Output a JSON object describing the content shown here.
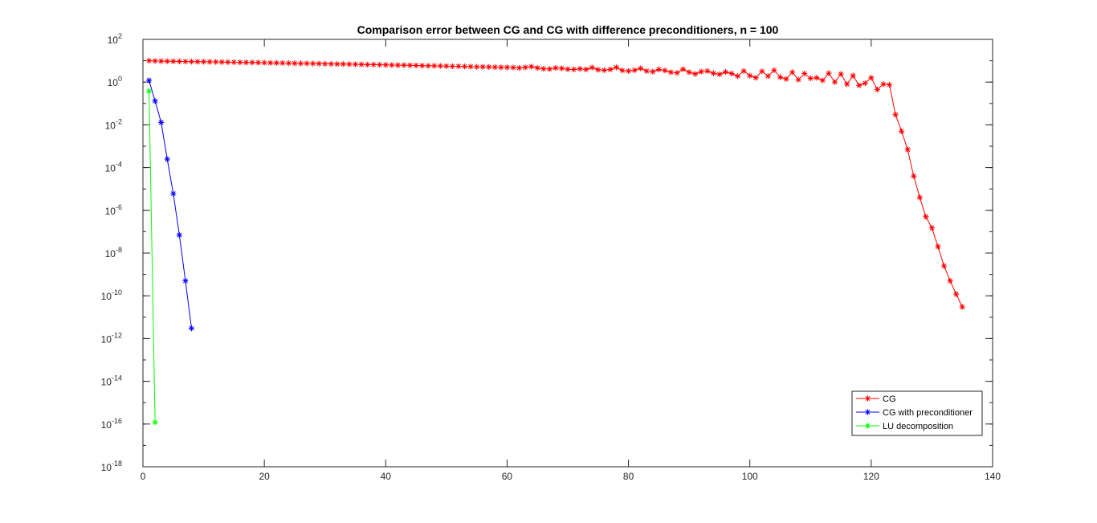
{
  "chart_data": {
    "type": "line",
    "title": "Comparison error between CG and CG with difference preconditioners, n = 100",
    "xlabel": "",
    "ylabel": "",
    "xlim": [
      0,
      140
    ],
    "ylim": [
      1e-18,
      100
    ],
    "yscale": "log",
    "x_ticks": [
      0,
      20,
      40,
      60,
      80,
      100,
      120,
      140
    ],
    "x_tick_labels": [
      "0",
      "20",
      "40",
      "60",
      "80",
      "100",
      "120",
      "140"
    ],
    "y_ticks": [
      {
        "base": "10",
        "exp": "2"
      },
      {
        "base": "10",
        "exp": "0"
      },
      {
        "base": "10",
        "exp": "-2"
      },
      {
        "base": "10",
        "exp": "-4"
      },
      {
        "base": "10",
        "exp": "-6"
      },
      {
        "base": "10",
        "exp": "-8"
      },
      {
        "base": "10",
        "exp": "-10"
      },
      {
        "base": "10",
        "exp": "-12"
      },
      {
        "base": "10",
        "exp": "-14"
      },
      {
        "base": "10",
        "exp": "-16"
      },
      {
        "base": "10",
        "exp": "-18"
      }
    ],
    "grid": false,
    "legend_position": "bottom-right",
    "series": [
      {
        "name": "CG",
        "color": "#ff0000",
        "marker": "asterisk",
        "points": [
          [
            1,
            10.0
          ],
          [
            2,
            9.8
          ],
          [
            3,
            9.6
          ],
          [
            4,
            9.5
          ],
          [
            5,
            9.4
          ],
          [
            6,
            9.3
          ],
          [
            7,
            9.2
          ],
          [
            8,
            9.1
          ],
          [
            9,
            9.0
          ],
          [
            10,
            9.0
          ],
          [
            11,
            8.9
          ],
          [
            12,
            8.8
          ],
          [
            13,
            8.7
          ],
          [
            14,
            8.6
          ],
          [
            15,
            8.5
          ],
          [
            16,
            8.4
          ],
          [
            17,
            8.3
          ],
          [
            18,
            8.3
          ],
          [
            19,
            8.2
          ],
          [
            20,
            8.1
          ],
          [
            21,
            8.0
          ],
          [
            22,
            7.9
          ],
          [
            23,
            7.8
          ],
          [
            24,
            7.7
          ],
          [
            25,
            7.6
          ],
          [
            26,
            7.5
          ],
          [
            27,
            7.5
          ],
          [
            28,
            7.4
          ],
          [
            29,
            7.3
          ],
          [
            30,
            7.2
          ],
          [
            31,
            7.1
          ],
          [
            32,
            7.0
          ],
          [
            33,
            7.0
          ],
          [
            34,
            6.9
          ],
          [
            35,
            6.8
          ],
          [
            36,
            6.7
          ],
          [
            37,
            6.6
          ],
          [
            38,
            6.6
          ],
          [
            39,
            6.5
          ],
          [
            40,
            6.4
          ],
          [
            41,
            6.3
          ],
          [
            42,
            6.2
          ],
          [
            43,
            6.2
          ],
          [
            44,
            6.1
          ],
          [
            45,
            6.0
          ],
          [
            46,
            5.9
          ],
          [
            47,
            5.8
          ],
          [
            48,
            5.8
          ],
          [
            49,
            5.7
          ],
          [
            50,
            5.6
          ],
          [
            51,
            5.5
          ],
          [
            52,
            5.5
          ],
          [
            53,
            5.4
          ],
          [
            54,
            5.3
          ],
          [
            55,
            5.2
          ],
          [
            56,
            5.2
          ],
          [
            57,
            5.1
          ],
          [
            58,
            5.0
          ],
          [
            59,
            4.9
          ],
          [
            60,
            4.9
          ],
          [
            61,
            4.8
          ],
          [
            62,
            4.6
          ],
          [
            63,
            4.9
          ],
          [
            64,
            5.3
          ],
          [
            65,
            4.6
          ],
          [
            66,
            4.2
          ],
          [
            67,
            4.1
          ],
          [
            68,
            4.6
          ],
          [
            69,
            4.4
          ],
          [
            70,
            4.0
          ],
          [
            71,
            3.9
          ],
          [
            72,
            4.2
          ],
          [
            73,
            3.9
          ],
          [
            74,
            4.8
          ],
          [
            75,
            3.8
          ],
          [
            76,
            3.6
          ],
          [
            77,
            3.9
          ],
          [
            78,
            4.9
          ],
          [
            79,
            3.5
          ],
          [
            80,
            3.3
          ],
          [
            81,
            3.6
          ],
          [
            82,
            4.4
          ],
          [
            83,
            3.3
          ],
          [
            84,
            3.1
          ],
          [
            85,
            3.9
          ],
          [
            86,
            3.5
          ],
          [
            87,
            2.9
          ],
          [
            88,
            2.7
          ],
          [
            89,
            4.0
          ],
          [
            90,
            2.9
          ],
          [
            91,
            2.4
          ],
          [
            92,
            3.1
          ],
          [
            93,
            3.3
          ],
          [
            94,
            2.6
          ],
          [
            95,
            2.3
          ],
          [
            96,
            3.0
          ],
          [
            97,
            2.5
          ],
          [
            98,
            1.9
          ],
          [
            99,
            3.3
          ],
          [
            100,
            2.0
          ],
          [
            101,
            1.6
          ],
          [
            102,
            3.2
          ],
          [
            103,
            1.9
          ],
          [
            104,
            3.6
          ],
          [
            105,
            1.7
          ],
          [
            106,
            1.4
          ],
          [
            107,
            2.9
          ],
          [
            108,
            1.3
          ],
          [
            109,
            2.5
          ],
          [
            110,
            1.5
          ],
          [
            111,
            1.6
          ],
          [
            112,
            1.2
          ],
          [
            113,
            2.6
          ],
          [
            114,
            1.0
          ],
          [
            115,
            2.4
          ],
          [
            116,
            0.8
          ],
          [
            117,
            2.0
          ],
          [
            118,
            0.7
          ],
          [
            119,
            0.9
          ],
          [
            120,
            1.6
          ],
          [
            121,
            0.45
          ],
          [
            122,
            0.8
          ],
          [
            123,
            0.75
          ],
          [
            124,
            0.03
          ],
          [
            125,
            0.005
          ],
          [
            126,
            0.0007
          ],
          [
            127,
            4e-05
          ],
          [
            128,
            4e-06
          ],
          [
            129,
            5e-07
          ],
          [
            130,
            1.5e-07
          ],
          [
            131,
            2e-08
          ],
          [
            132,
            2.5e-09
          ],
          [
            133,
            5e-10
          ],
          [
            134,
            1.2e-10
          ],
          [
            135,
            3e-11
          ]
        ]
      },
      {
        "name": "CG with preconditioner",
        "color": "#0000ff",
        "marker": "asterisk",
        "points": [
          [
            1,
            1.2
          ],
          [
            2,
            0.13
          ],
          [
            3,
            0.013
          ],
          [
            4,
            0.00025
          ],
          [
            5,
            6e-06
          ],
          [
            6,
            7e-08
          ],
          [
            7,
            5e-10
          ],
          [
            8,
            3e-12
          ]
        ]
      },
      {
        "name": "LU decomposition",
        "color": "#00ff00",
        "marker": "asterisk",
        "points": [
          [
            1,
            0.38
          ],
          [
            2,
            1.2e-16
          ]
        ]
      }
    ]
  }
}
